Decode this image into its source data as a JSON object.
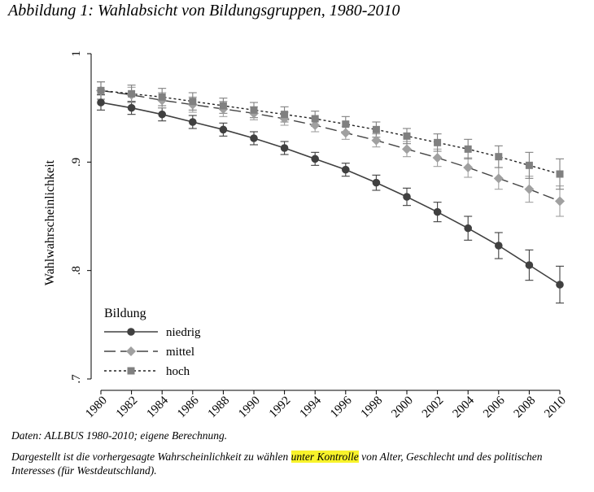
{
  "figure": {
    "title": "Abbildung 1:  Wahlabsicht von Bildungsgruppen, 1980-2010",
    "source": "Daten: ALLBUS 1980-2010; eigene Berechnung.",
    "note_before": "Dargestellt ist die vorhergesagte Wahrscheinlichkeit zu wählen ",
    "note_highlight": "unter Kontrolle",
    "note_after": " von Alter, Geschlecht und des politischen Interesses (für Westdeutschland).",
    "highlight_color": "#f8f32b"
  },
  "chart_data": {
    "type": "line",
    "title": "",
    "xlabel": "",
    "ylabel": "Wahlwahrscheinlichkeit",
    "x": [
      1980,
      1982,
      1984,
      1986,
      1988,
      1990,
      1992,
      1994,
      1996,
      1998,
      2000,
      2002,
      2004,
      2006,
      2008,
      2010
    ],
    "x_tick_labels": [
      "1980",
      "1982",
      "1984",
      "1986",
      "1988",
      "1990",
      "1992",
      "1994",
      "1996",
      "1998",
      "2000",
      "2002",
      "2004",
      "2006",
      "2008",
      "2010"
    ],
    "y_ticks": [
      0.7,
      0.8,
      0.9,
      1.0
    ],
    "y_tick_labels": [
      ".7",
      ".8",
      ".9",
      "1"
    ],
    "ylim": [
      0.7,
      1.0
    ],
    "xlim": [
      1980,
      2010
    ],
    "grid": false,
    "legend": {
      "title": "Bildung",
      "placement": "bottom-left"
    },
    "series": [
      {
        "name": "niedrig",
        "color": "#404040",
        "line_style": "solid",
        "marker": "circle",
        "values": [
          0.955,
          0.95,
          0.944,
          0.937,
          0.93,
          0.922,
          0.913,
          0.903,
          0.893,
          0.881,
          0.868,
          0.854,
          0.839,
          0.823,
          0.805,
          0.787
        ],
        "error": [
          0.007,
          0.006,
          0.006,
          0.006,
          0.006,
          0.006,
          0.006,
          0.006,
          0.006,
          0.007,
          0.008,
          0.009,
          0.011,
          0.012,
          0.014,
          0.017
        ]
      },
      {
        "name": "mittel",
        "color": "#a0a0a0",
        "line_style": "dashed",
        "marker": "diamond",
        "values": [
          0.966,
          0.962,
          0.957,
          0.953,
          0.949,
          0.945,
          0.94,
          0.934,
          0.927,
          0.92,
          0.912,
          0.904,
          0.895,
          0.885,
          0.875,
          0.864
        ],
        "error": [
          0.008,
          0.007,
          0.007,
          0.007,
          0.007,
          0.006,
          0.006,
          0.006,
          0.006,
          0.006,
          0.007,
          0.008,
          0.009,
          0.01,
          0.012,
          0.014
        ]
      },
      {
        "name": "hoch",
        "color": "#808080",
        "line_style": "dotted",
        "marker": "square",
        "values": [
          0.966,
          0.963,
          0.96,
          0.956,
          0.952,
          0.948,
          0.944,
          0.94,
          0.935,
          0.93,
          0.924,
          0.918,
          0.912,
          0.905,
          0.897,
          0.889
        ],
        "error": [
          0.008,
          0.008,
          0.008,
          0.008,
          0.007,
          0.007,
          0.007,
          0.007,
          0.007,
          0.007,
          0.007,
          0.008,
          0.009,
          0.01,
          0.012,
          0.014
        ]
      }
    ]
  }
}
